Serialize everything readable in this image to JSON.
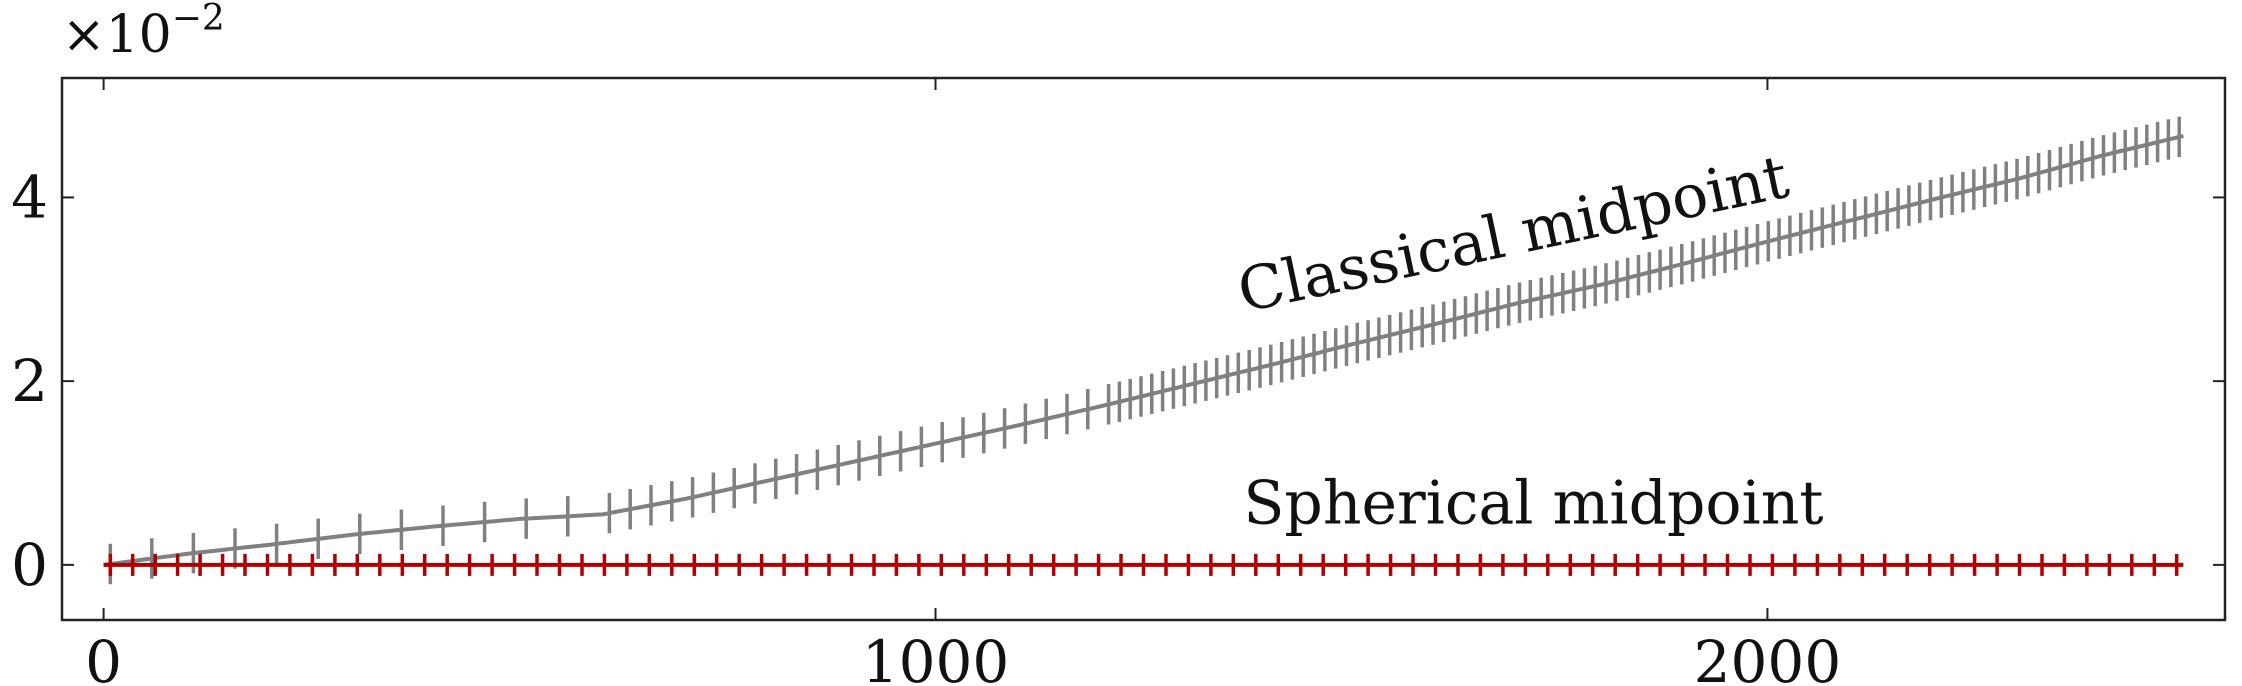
{
  "chart_data": {
    "type": "line",
    "title": "",
    "xlabel": "",
    "ylabel": "",
    "y_multiplier": {
      "base": "×10",
      "exponent": "−2"
    },
    "xlim": [
      -50,
      2550
    ],
    "ylim": [
      -0.6,
      5.3
    ],
    "xticks": [
      0,
      1000,
      2000
    ],
    "xtick_labels": [
      "0",
      "1000",
      "2000"
    ],
    "yticks": [
      0,
      2,
      4
    ],
    "ytick_labels": [
      "0",
      "2",
      "4"
    ],
    "grid": false,
    "legend": "none",
    "series": [
      {
        "name": "Classical midpoint",
        "color": "#808080",
        "x": [
          0,
          100,
          200,
          300,
          400,
          500,
          600,
          700,
          800,
          900,
          1000,
          1100,
          1200,
          1300,
          1400,
          1500,
          1600,
          1700,
          1800,
          1900,
          2000,
          2100,
          2200,
          2300,
          2400,
          2500
        ],
        "y": [
          0,
          0.12,
          0.22,
          0.33,
          0.42,
          0.5,
          0.55,
          0.72,
          0.92,
          1.12,
          1.32,
          1.52,
          1.73,
          1.95,
          2.17,
          2.4,
          2.62,
          2.85,
          3.05,
          3.28,
          3.52,
          3.75,
          3.98,
          4.2,
          4.45,
          4.67
        ],
        "oscillation_amplitude": 0.22
      },
      {
        "name": "Spherical midpoint",
        "color": "#b00000",
        "x": [
          0,
          2500
        ],
        "y": [
          0,
          0
        ],
        "oscillation_amplitude": 0.12
      }
    ],
    "annotations": [
      {
        "text": "Classical midpoint",
        "series": "Classical midpoint",
        "x": 1370,
        "y": 2.75,
        "rotation_deg": -12
      },
      {
        "text": "Spherical midpoint",
        "series": "Spherical midpoint",
        "x": 1370,
        "y": 0.45,
        "rotation_deg": 0
      }
    ]
  }
}
